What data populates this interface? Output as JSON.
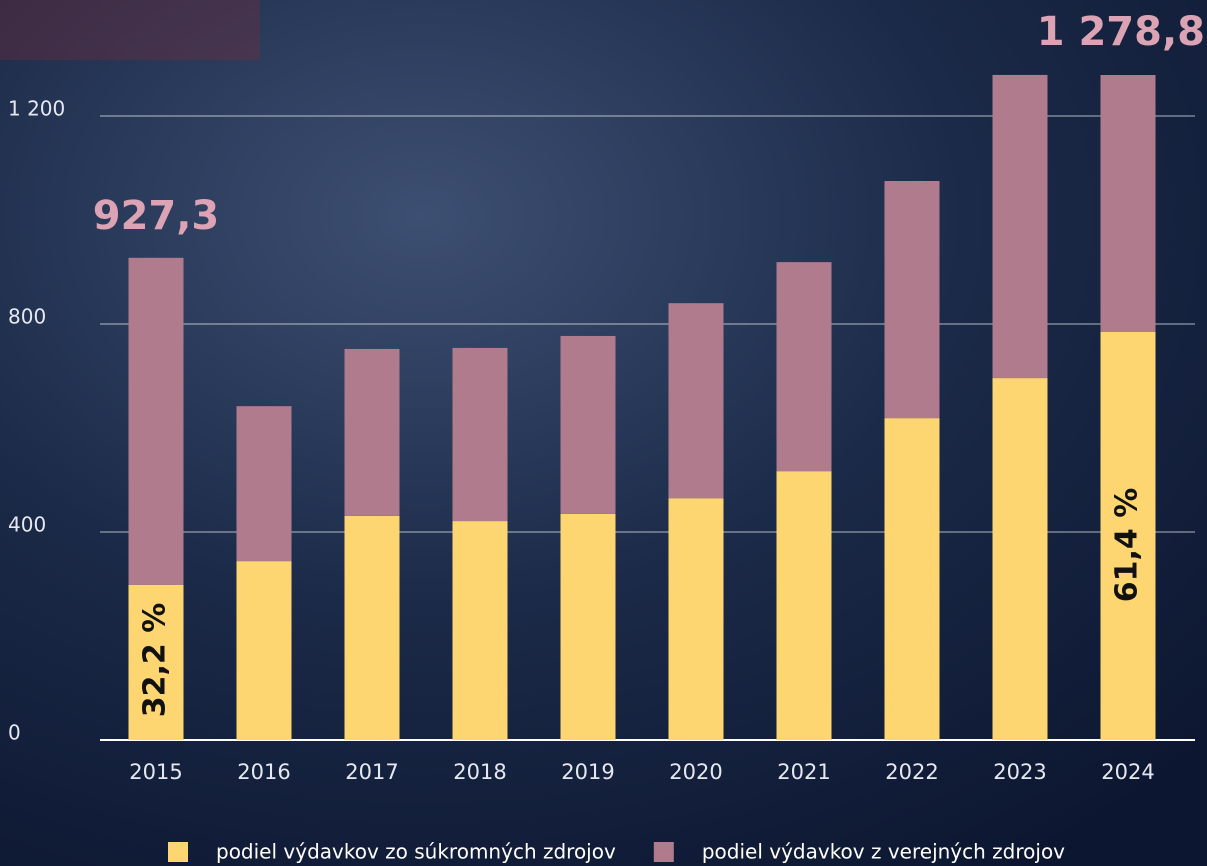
{
  "chart_data": {
    "type": "stacked-bar",
    "categories": [
      "2015",
      "2016",
      "2017",
      "2018",
      "2019",
      "2020",
      "2021",
      "2022",
      "2023",
      "2024"
    ],
    "series": [
      {
        "name": "podiel výdavkov zo súkromných zdrojov",
        "color": "#fdd672",
        "values": [
          298.6,
          344,
          431,
          421,
          435,
          465,
          517,
          619,
          696,
          785.2
        ]
      },
      {
        "name": "podiel výdavkov z verejných zdrojov",
        "color": "#b07c8d",
        "values": [
          628.7,
          298,
          321,
          333,
          342,
          375,
          402,
          456,
          583,
          493.6
        ]
      }
    ],
    "ylim": [
      0,
      1300
    ],
    "yticks": [
      0,
      400,
      800,
      {
        "value": 1200,
        "label": "1 200"
      }
    ],
    "grid": true,
    "annotations": [
      {
        "text": "927,3"
      },
      {
        "text": "1 278,8"
      },
      {
        "text": "32,2 %"
      },
      {
        "text": "61,4 %"
      }
    ]
  }
}
